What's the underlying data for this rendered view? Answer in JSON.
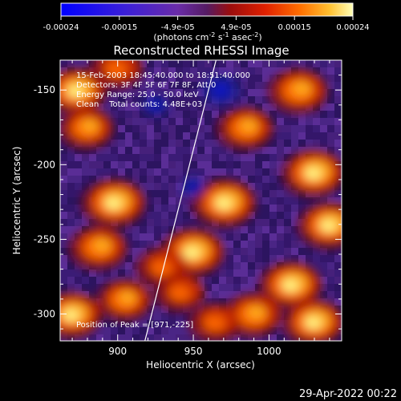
{
  "chart_data": {
    "type": "heatmap",
    "title": "Reconstructed RHESSI Image",
    "xlabel": "Heliocentric X (arcsec)",
    "ylabel": "Heliocentric Y (arcsec)",
    "xlim": [
      862,
      1048
    ],
    "ylim": [
      -318,
      -130
    ],
    "xticks": [
      900,
      950,
      1000
    ],
    "yticks": [
      -150,
      -200,
      -250,
      -300
    ],
    "colorbar": {
      "range": [
        -0.00024,
        0.00024
      ],
      "tick_labels": [
        "-0.00024",
        "-0.00015",
        "-4.9e-05",
        "4.9e-05",
        "0.00015",
        "0.00024"
      ],
      "unit_label": "(photons cm",
      "unit_exp1": "-2",
      "unit_mid": " s",
      "unit_exp2": "-1",
      "unit_mid2": " asec",
      "unit_exp3": "-2",
      "unit_close": ")"
    },
    "info_lines": [
      "15-Feb-2003 18:45:40.000 to 18:51:40.000",
      "Detectors: 3F 4F 5F 6F 7F 8F, Att 0",
      "Energy Range: 25.0 - 50.0 keV",
      "Clean    Total counts: 4.48E+03"
    ],
    "peak_label": "Position of Peak = [971,-225]",
    "peak": [
      971,
      -225
    ],
    "limb_line": [
      [
        918,
        -318
      ],
      [
        965,
        -130
      ]
    ],
    "bright_regions": [
      {
        "x": 873,
        "y": -150,
        "level": 0.9
      },
      {
        "x": 880,
        "y": -175,
        "level": 0.7
      },
      {
        "x": 898,
        "y": -225,
        "level": 1.0
      },
      {
        "x": 888,
        "y": -255,
        "level": 0.8
      },
      {
        "x": 870,
        "y": -300,
        "level": 0.9
      },
      {
        "x": 905,
        "y": -290,
        "level": 0.7
      },
      {
        "x": 950,
        "y": -258,
        "level": 1.0
      },
      {
        "x": 930,
        "y": -268,
        "level": 0.6
      },
      {
        "x": 942,
        "y": -285,
        "level": 0.55
      },
      {
        "x": 971,
        "y": -225,
        "level": 1.0
      },
      {
        "x": 985,
        "y": -175,
        "level": 0.75
      },
      {
        "x": 1020,
        "y": -150,
        "level": 0.85
      },
      {
        "x": 1030,
        "y": -205,
        "level": 0.95
      },
      {
        "x": 1040,
        "y": -240,
        "level": 0.9
      },
      {
        "x": 1015,
        "y": -280,
        "level": 0.95
      },
      {
        "x": 1030,
        "y": -305,
        "level": 0.9
      },
      {
        "x": 990,
        "y": -300,
        "level": 0.8
      },
      {
        "x": 965,
        "y": -305,
        "level": 0.6
      },
      {
        "x": 900,
        "y": -135,
        "level": 0.65
      }
    ],
    "dark_regions": [
      {
        "x": 968,
        "y": -150,
        "level": 1.0
      },
      {
        "x": 925,
        "y": -160,
        "level": 0.6
      },
      {
        "x": 950,
        "y": -215,
        "level": 0.5
      }
    ]
  },
  "footer": {
    "timestamp": "29-Apr-2022 00:22"
  }
}
